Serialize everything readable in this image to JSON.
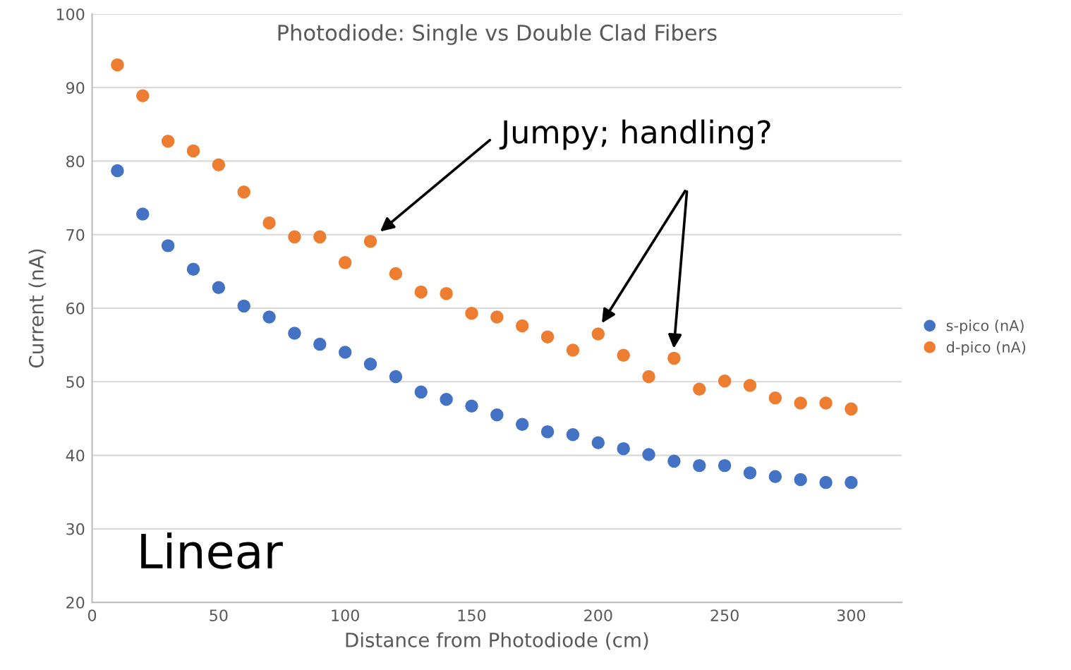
{
  "chart_data": {
    "type": "scatter",
    "title": "Photodiode: Single vs Double Clad Fibers",
    "xlabel": "Distance from Photodiode (cm)",
    "ylabel": "Current (nA)",
    "x": [
      10,
      20,
      30,
      40,
      50,
      60,
      70,
      80,
      90,
      100,
      110,
      120,
      130,
      140,
      150,
      160,
      170,
      180,
      190,
      200,
      210,
      220,
      230,
      240,
      250,
      260,
      270,
      280,
      290,
      300
    ],
    "series": [
      {
        "name": "s-pico (nA)",
        "color": "#4472c4",
        "values": [
          78.7,
          72.8,
          68.5,
          65.3,
          62.8,
          60.3,
          58.8,
          56.6,
          55.1,
          54.0,
          52.4,
          50.7,
          48.6,
          47.6,
          46.7,
          45.5,
          44.2,
          43.2,
          42.8,
          41.7,
          40.9,
          40.1,
          39.2,
          38.6,
          38.6,
          37.6,
          37.1,
          36.7,
          36.3,
          36.3
        ]
      },
      {
        "name": "d-pico (nA)",
        "color": "#ed7d31",
        "values": [
          93.1,
          88.9,
          82.7,
          81.4,
          79.5,
          75.8,
          71.6,
          69.7,
          69.7,
          66.2,
          69.1,
          64.7,
          62.2,
          62.0,
          59.3,
          58.8,
          57.6,
          56.1,
          54.3,
          56.5,
          53.6,
          50.7,
          53.2,
          49.0,
          50.1,
          49.5,
          47.8,
          47.1,
          47.1,
          46.3
        ]
      }
    ],
    "xlim": [
      0,
      320
    ],
    "xticks": [
      0,
      50,
      100,
      150,
      200,
      250,
      300
    ],
    "ylim": [
      20,
      100
    ],
    "yticks": [
      20,
      30,
      40,
      50,
      60,
      70,
      80,
      90,
      100
    ],
    "grid": "y",
    "legend": "right",
    "marker": "circle",
    "annotations": [
      "Jumpy; handling?",
      "Linear"
    ]
  }
}
